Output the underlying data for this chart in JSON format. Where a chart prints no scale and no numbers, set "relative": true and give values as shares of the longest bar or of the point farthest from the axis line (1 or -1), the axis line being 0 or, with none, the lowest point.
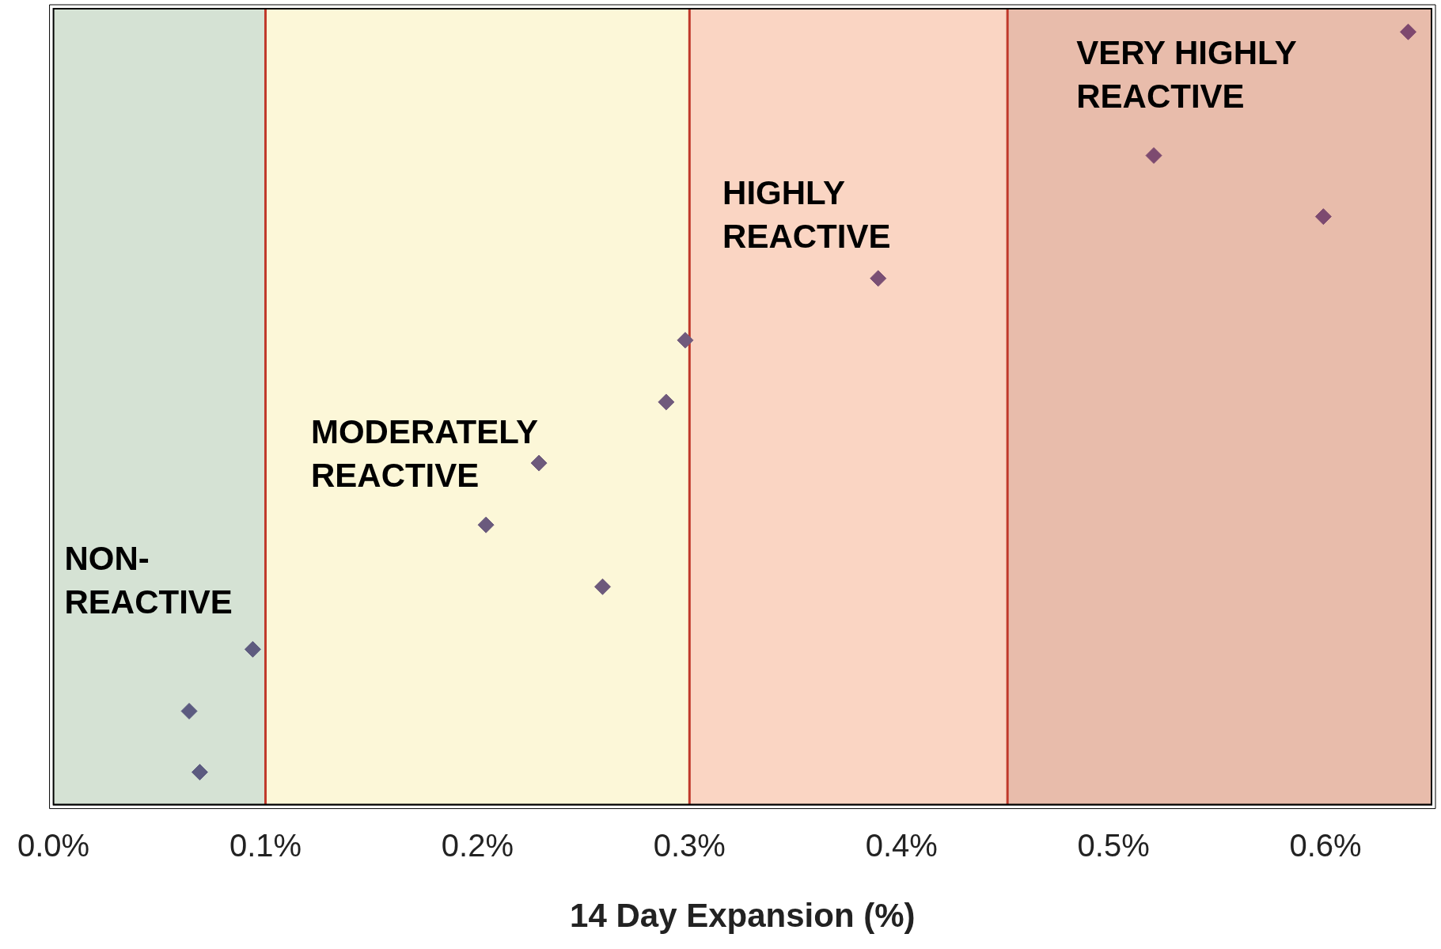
{
  "chart_data": {
    "type": "scatter",
    "xlabel": "14 Day Expansion (%)",
    "x": [
      0.069,
      0.064,
      0.094,
      0.259,
      0.204,
      0.229,
      0.289,
      0.298,
      0.389,
      0.599,
      0.519,
      0.639
    ],
    "values": [
      0.042,
      0.121,
      0.201,
      0.282,
      0.362,
      0.442,
      0.521,
      0.601,
      0.681,
      0.761,
      0.84,
      1
    ],
    "colors": [
      "#5c5b80",
      "#5c5b80",
      "#5e5b7f",
      "#6d5a7c",
      "#6a5a7d",
      "#6d5a7c",
      "#705a7c",
      "#705a7c",
      "#7a4f74",
      "#7d4a70",
      "#7d4a70",
      "#7e486e"
    ],
    "relative": true,
    "marker": "diamond",
    "grid": false,
    "legend": false,
    "tick_labels": "x",
    "xlim": [
      0,
      0.65
    ],
    "xticks": [
      {
        "value": 0,
        "label": "0.0%"
      },
      {
        "value": 0.1,
        "label": "0.1%"
      },
      {
        "value": 0.2,
        "label": "0.2%"
      },
      {
        "value": 0.3,
        "label": "0.3%"
      },
      {
        "value": 0.4,
        "label": "0.4%"
      },
      {
        "value": 0.5,
        "label": "0.5%"
      },
      {
        "value": 0.6,
        "label": "0.6%"
      }
    ],
    "bands": [
      {
        "axis": "x",
        "from": 0,
        "to": 0.1,
        "label": "NON-REACTIVE",
        "color": "#d5e2d4"
      },
      {
        "axis": "x",
        "from": 0.1,
        "to": 0.3,
        "label": "MODERATELY REACTIVE",
        "color": "#fcf7d8"
      },
      {
        "axis": "x",
        "from": 0.3,
        "to": 0.45,
        "label": "HIGHLY REACTIVE",
        "color": "#fad5c3"
      },
      {
        "axis": "x",
        "from": 0.45,
        "to": 0.65,
        "label": "VERY HIGHLY REACTIVE",
        "color": "#e8bcab"
      }
    ],
    "ref_lines": [
      {
        "axis": "x",
        "value": 0.1,
        "color": "#c0392b"
      },
      {
        "axis": "x",
        "value": 0.3,
        "color": "#c0392b"
      },
      {
        "axis": "x",
        "value": 0.45,
        "color": "#c0392b"
      }
    ]
  }
}
